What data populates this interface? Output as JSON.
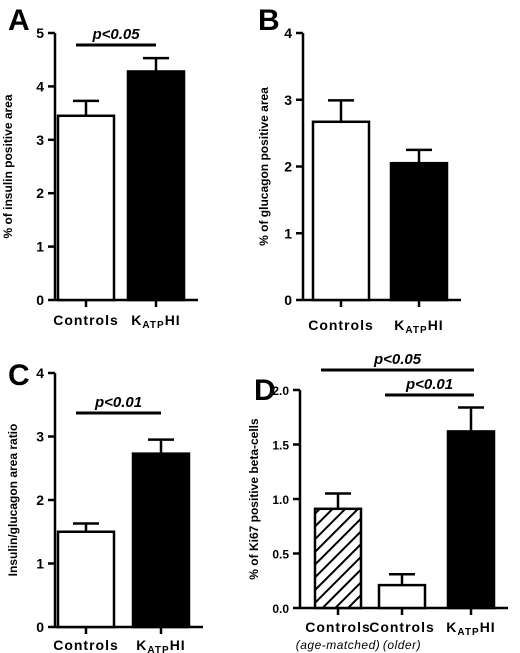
{
  "chart_data": [
    {
      "panel": "A",
      "type": "bar",
      "ylabel": "% of insulin positive area",
      "ylim": [
        0,
        5
      ],
      "yticks": [
        "0",
        "1",
        "2",
        "3",
        "4",
        "5"
      ],
      "categories": [
        "Controls",
        "KATPHI"
      ],
      "category_labels": [
        {
          "main": "Controls",
          "sub": "",
          "sup": ""
        },
        {
          "main": "K",
          "sub": "ATP",
          "sup": "HI"
        }
      ],
      "values": [
        3.45,
        4.28
      ],
      "errors": [
        0.28,
        0.25
      ],
      "fills": [
        "white",
        "black"
      ],
      "significance": [
        {
          "label": "p<0.05",
          "from": 0,
          "to": 1
        }
      ]
    },
    {
      "panel": "B",
      "type": "bar",
      "ylabel": "% of glucagon positive area",
      "ylim": [
        0,
        4
      ],
      "yticks": [
        "0",
        "1",
        "2",
        "3",
        "4"
      ],
      "categories": [
        "Controls",
        "KATPHI"
      ],
      "category_labels": [
        {
          "main": "Controls",
          "sub": "",
          "sup": ""
        },
        {
          "main": "K",
          "sub": "ATP",
          "sup": "HI"
        }
      ],
      "values": [
        2.67,
        2.05
      ],
      "errors": [
        0.32,
        0.2
      ],
      "fills": [
        "white",
        "black"
      ],
      "significance": []
    },
    {
      "panel": "C",
      "type": "bar",
      "ylabel": "Insulin/glucagon area ratio",
      "ylim": [
        0,
        4
      ],
      "yticks": [
        "0",
        "1",
        "2",
        "3",
        "4"
      ],
      "categories": [
        "Controls",
        "KATPHI"
      ],
      "category_labels": [
        {
          "main": "Controls",
          "sub": "",
          "sup": ""
        },
        {
          "main": "K",
          "sub": "ATP",
          "sup": "HI"
        }
      ],
      "values": [
        1.5,
        2.73
      ],
      "errors": [
        0.13,
        0.22
      ],
      "fills": [
        "white",
        "black"
      ],
      "significance": [
        {
          "label": "p<0.01",
          "from": 0,
          "to": 1
        }
      ]
    },
    {
      "panel": "D",
      "type": "bar",
      "ylabel": "% of Ki67 positive beta-cells",
      "ylim": [
        0,
        2.0
      ],
      "yticks": [
        "0.0",
        "0.5",
        "1.0",
        "1.5",
        "2.0"
      ],
      "categories": [
        "Controls (age-matched)",
        "Controls (older)",
        "KATPHI"
      ],
      "category_labels": [
        {
          "main": "Controls",
          "sub": "",
          "sup": "",
          "note": "(age-matched)"
        },
        {
          "main": "Controls",
          "sub": "",
          "sup": "",
          "note": "(older)"
        },
        {
          "main": "K",
          "sub": "ATP",
          "sup": "HI",
          "note": ""
        }
      ],
      "values": [
        0.91,
        0.21,
        1.62
      ],
      "errors": [
        0.14,
        0.1,
        0.22
      ],
      "fills": [
        "hatched",
        "white",
        "black"
      ],
      "significance": [
        {
          "label": "p<0.05",
          "from": 0,
          "to": 2
        },
        {
          "label": "p<0.01",
          "from": 1,
          "to": 2
        }
      ]
    }
  ]
}
